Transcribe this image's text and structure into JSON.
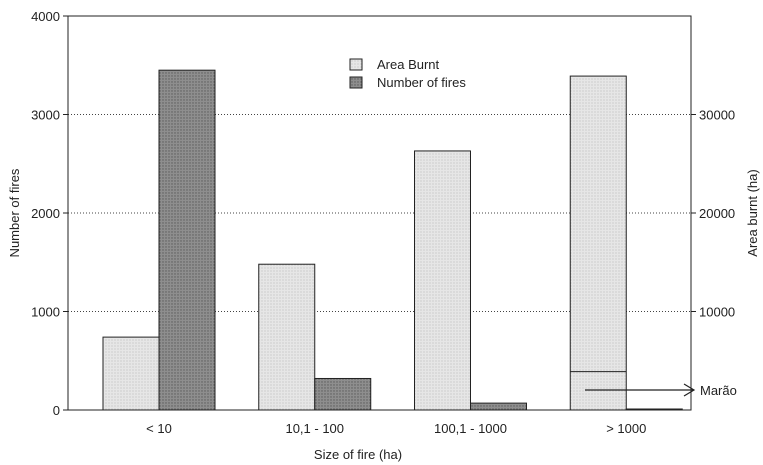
{
  "chart_data": {
    "type": "bar",
    "xlabel": "Size of  fire (ha)",
    "ylabel_left": "Number of fires",
    "ylabel_right": "Area burnt (ha)",
    "categories": [
      "< 10",
      "10,1 - 100",
      "100,1 - 1000",
      "> 1000"
    ],
    "ylim_left": [
      0,
      4000
    ],
    "yticks_left": [
      0,
      1000,
      2000,
      3000,
      4000
    ],
    "ylim_right": [
      0,
      40000
    ],
    "yticks_right": [
      10000,
      20000,
      30000
    ],
    "grid": "horizontal dotted",
    "legend_position": "top-center",
    "series": [
      {
        "name": "Area Burnt",
        "axis": "right",
        "values": [
          7400,
          14800,
          26300,
          33900
        ],
        "color": "#e2e2e2"
      },
      {
        "name": "Number of fires",
        "axis": "left",
        "values": [
          3450,
          320,
          70,
          10
        ],
        "color": "#8c8c8c"
      }
    ],
    "annotation": {
      "label": "Marão",
      "category": "> 1000",
      "area_burnt": 3900
    }
  }
}
